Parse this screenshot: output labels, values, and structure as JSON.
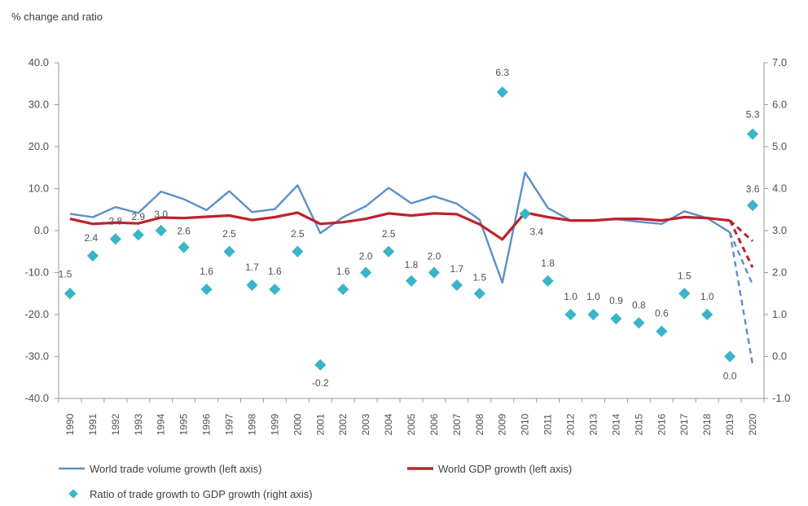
{
  "chart_data": {
    "type": "line",
    "title": "% change and ratio",
    "categories": [
      "1990",
      "1991",
      "1992",
      "1993",
      "1994",
      "1995",
      "1996",
      "1997",
      "1998",
      "1999",
      "2000",
      "2001",
      "2002",
      "2003",
      "2004",
      "2005",
      "2006",
      "2007",
      "2008",
      "2009",
      "2010",
      "2011",
      "2012",
      "2013",
      "2014",
      "2015",
      "2016",
      "2017",
      "2018",
      "2019",
      "2020"
    ],
    "left_axis": {
      "ylim": [
        -40,
        40
      ],
      "ticks": [
        "40.0",
        "30.0",
        "20.0",
        "10.0",
        "0.0",
        "-10.0",
        "-20.0",
        "-30.0",
        "-40.0"
      ],
      "tick_values": [
        40,
        30,
        20,
        10,
        0,
        -10,
        -20,
        -30,
        -40
      ]
    },
    "right_axis": {
      "ylim": [
        -1,
        7
      ],
      "ticks": [
        "7.0",
        "6.0",
        "5.0",
        "4.0",
        "3.0",
        "2.0",
        "1.0",
        "0.0",
        "-1.0"
      ],
      "tick_values": [
        7,
        6,
        5,
        4,
        3,
        2,
        1,
        0,
        -1
      ]
    },
    "series": [
      {
        "name": "World trade volume growth (left axis)",
        "axis": "left",
        "kind": "line",
        "color": "#5b8fc7",
        "values": [
          4.0,
          3.2,
          5.6,
          4.2,
          9.3,
          7.5,
          4.9,
          9.4,
          4.4,
          5.1,
          10.8,
          -0.6,
          3.2,
          5.8,
          10.2,
          6.5,
          8.2,
          6.4,
          2.6,
          -12.4,
          13.8,
          5.4,
          2.4,
          2.4,
          2.7,
          2.1,
          1.6,
          4.6,
          3.0,
          -0.4,
          null
        ],
        "projection": [
          [
            2019,
            -0.4
          ],
          [
            2020,
            -12.9
          ]
        ],
        "projection_alt": [
          [
            2019,
            -0.4
          ],
          [
            2020,
            -31.9
          ]
        ]
      },
      {
        "name": "World GDP growth (left axis)",
        "axis": "left",
        "kind": "line",
        "color": "#c0212d",
        "values": [
          2.8,
          1.6,
          1.9,
          1.7,
          3.1,
          3.0,
          3.3,
          3.6,
          2.5,
          3.2,
          4.3,
          1.6,
          2.0,
          2.8,
          4.1,
          3.6,
          4.1,
          3.9,
          1.5,
          -2.1,
          4.3,
          3.2,
          2.4,
          2.4,
          2.8,
          2.8,
          2.4,
          3.2,
          3.0,
          2.4,
          null
        ],
        "projection": [
          [
            2019,
            2.4
          ],
          [
            2020,
            -2.5
          ]
        ],
        "projection_alt": [
          [
            2019,
            2.4
          ],
          [
            2020,
            -8.8
          ]
        ]
      },
      {
        "name": "Ratio of trade growth to GDP growth (right axis)",
        "axis": "right",
        "kind": "scatter",
        "color": "#3ab4c9",
        "values": [
          1.5,
          2.4,
          2.8,
          2.9,
          3.0,
          2.6,
          1.6,
          2.5,
          1.7,
          1.6,
          2.5,
          -0.2,
          1.6,
          2.0,
          2.5,
          1.8,
          2.0,
          1.7,
          1.5,
          6.3,
          3.4,
          1.8,
          1.0,
          1.0,
          0.9,
          0.8,
          0.6,
          1.5,
          1.0,
          0.0,
          5.3
        ],
        "extra_points": [
          {
            "x": "2020",
            "y": 3.6
          }
        ],
        "labels": [
          "1.5",
          "2.4",
          "2.8",
          "2.9",
          "3.0",
          "2.6",
          "1.6",
          "2.5",
          "1.7",
          "1.6",
          "2.5",
          "-0.2",
          "1.6",
          "2.0",
          "2.5",
          "1.8",
          "2.0",
          "1.7",
          "1.5",
          "6.3",
          "3.4",
          "1.8",
          "1.0",
          "1.0",
          "0.9",
          "0.8",
          "0.6",
          "1.5",
          "1.0",
          "0.0",
          "5.3"
        ],
        "extra_labels": [
          "3.6"
        ]
      }
    ],
    "legend_position": "bottom",
    "grid": false
  }
}
